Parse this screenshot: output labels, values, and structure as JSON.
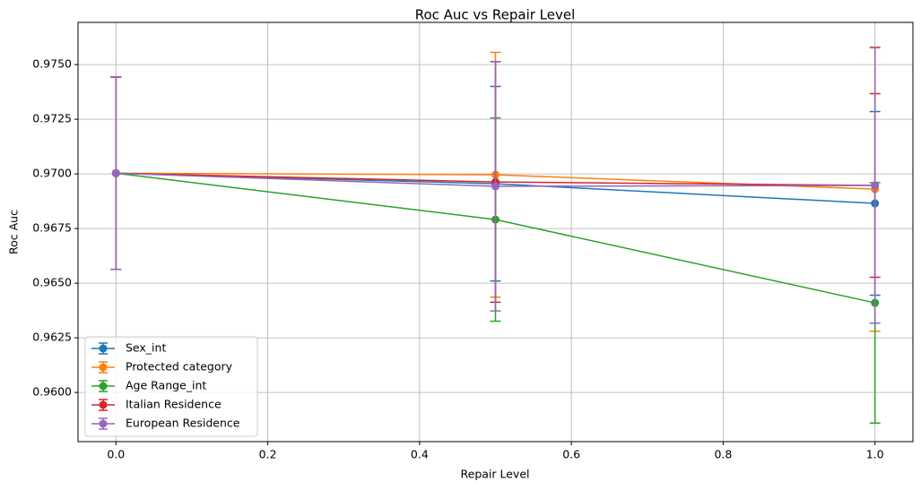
{
  "chart_data": {
    "type": "errorbar-line",
    "title": "Roc Auc vs Repair Level",
    "xlabel": "Repair Level",
    "ylabel": "Roc Auc",
    "x": [
      0.0,
      0.5,
      1.0
    ],
    "series": [
      {
        "name": "Sex_int",
        "color": "#1f77b4",
        "values": [
          0.97003,
          0.96955,
          0.96865
        ],
        "errors": [
          0.0044,
          0.00445,
          0.0042
        ]
      },
      {
        "name": "Protected category",
        "color": "#ff7f0e",
        "values": [
          0.97003,
          0.96996,
          0.9693
        ],
        "errors": [
          0.0044,
          0.0056,
          0.0065
        ]
      },
      {
        "name": "Age Range_int",
        "color": "#2ca02c",
        "values": [
          0.97003,
          0.96791,
          0.9641
        ],
        "errors": [
          0.0044,
          0.00465,
          0.0055
        ]
      },
      {
        "name": "Italian Residence",
        "color": "#d62728",
        "values": [
          0.97003,
          0.96963,
          0.96947
        ],
        "errors": [
          0.0044,
          0.0055,
          0.0042
        ]
      },
      {
        "name": "European Residence",
        "color": "#9467bd",
        "values": [
          0.97003,
          0.96943,
          0.96947
        ],
        "errors": [
          0.0044,
          0.0057,
          0.0063
        ]
      }
    ],
    "xlim": [
      -0.05,
      1.05
    ],
    "ylim": [
      0.95775,
      0.97693
    ],
    "xticks": [
      {
        "value": 0.0,
        "label": "0.0"
      },
      {
        "value": 0.2,
        "label": "0.2"
      },
      {
        "value": 0.4,
        "label": "0.4"
      },
      {
        "value": 0.6,
        "label": "0.6"
      },
      {
        "value": 0.8,
        "label": "0.8"
      },
      {
        "value": 1.0,
        "label": "1.0"
      }
    ],
    "yticks": [
      {
        "value": 0.96,
        "label": "0.9600"
      },
      {
        "value": 0.9625,
        "label": "0.9625"
      },
      {
        "value": 0.965,
        "label": "0.9650"
      },
      {
        "value": 0.9675,
        "label": "0.9675"
      },
      {
        "value": 0.97,
        "label": "0.9700"
      },
      {
        "value": 0.9725,
        "label": "0.9725"
      },
      {
        "value": 0.975,
        "label": "0.9750"
      }
    ],
    "grid": true,
    "legend": "lower left"
  }
}
